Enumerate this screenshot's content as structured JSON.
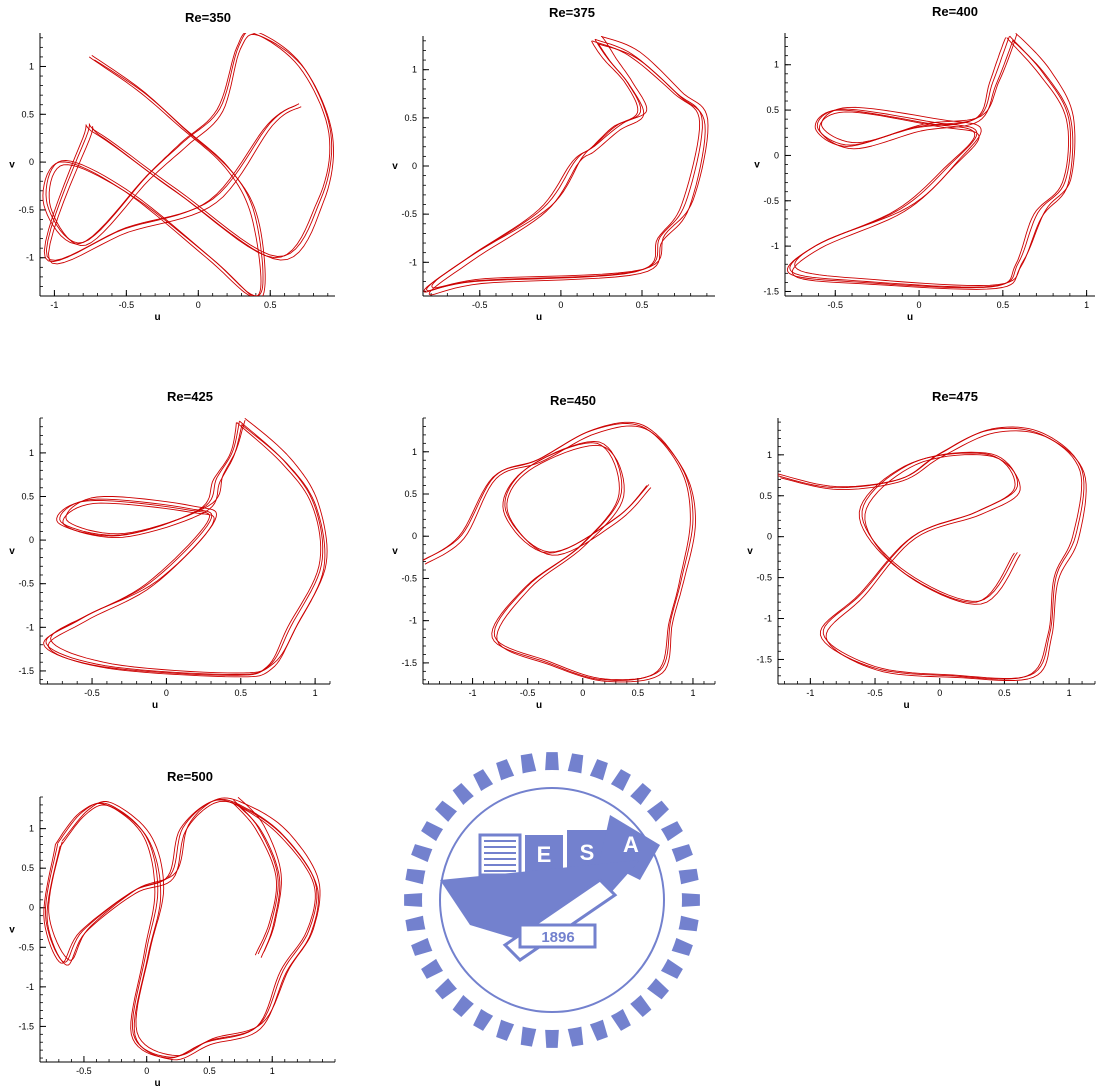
{
  "chart_data": [
    {
      "type": "scatter",
      "title": "Re=350",
      "xlabel": "u",
      "ylabel": "v",
      "xlim": [
        -1.1,
        0.95
      ],
      "ylim": [
        -1.4,
        1.35
      ],
      "xticks": [
        -1,
        -0.5,
        0,
        0.5
      ],
      "yticks": [
        -1,
        -0.5,
        0,
        0.5,
        1
      ],
      "color": "#cc0000",
      "curve_style": "chaotic-attractor",
      "series": [
        {
          "values": [
            [
              -0.74,
              1.1
            ],
            [
              -0.4,
              0.75
            ],
            [
              -0.1,
              0.35
            ],
            [
              0.2,
              -0.05
            ],
            [
              0.38,
              -0.5
            ],
            [
              0.45,
              -1.2
            ],
            [
              0.38,
              -1.4
            ],
            [
              0.08,
              -1.0
            ],
            [
              -0.5,
              -0.3
            ],
            [
              -0.95,
              0.0
            ],
            [
              -1.05,
              -0.45
            ],
            [
              -0.8,
              -0.85
            ],
            [
              -0.35,
              -0.15
            ],
            [
              -0.1,
              0.2
            ],
            [
              0.15,
              0.55
            ],
            [
              0.28,
              1.2
            ],
            [
              0.4,
              1.35
            ],
            [
              0.72,
              1.0
            ],
            [
              0.92,
              0.3
            ],
            [
              0.85,
              -0.4
            ],
            [
              0.55,
              -1.0
            ],
            [
              -0.15,
              -0.3
            ],
            [
              -0.7,
              0.3
            ],
            [
              -0.78,
              0.25
            ],
            [
              -1.05,
              -1.0
            ],
            [
              -0.5,
              -0.7
            ],
            [
              0.1,
              -0.4
            ],
            [
              0.5,
              0.4
            ],
            [
              0.7,
              0.6
            ]
          ]
        }
      ]
    },
    {
      "type": "scatter",
      "title": "Re=375",
      "xlabel": "u",
      "ylabel": "v",
      "xlim": [
        -0.85,
        0.95
      ],
      "ylim": [
        -1.35,
        1.35
      ],
      "xticks": [
        -0.5,
        0,
        0.5
      ],
      "yticks": [
        -1,
        -0.5,
        0,
        0.5,
        1
      ],
      "color": "#cc0000",
      "curve_style": "periodic-loop",
      "series": [
        {
          "values": [
            [
              0.22,
              1.3
            ],
            [
              0.45,
              1.15
            ],
            [
              0.72,
              0.75
            ],
            [
              0.88,
              0.45
            ],
            [
              0.78,
              -0.4
            ],
            [
              0.62,
              -0.75
            ],
            [
              0.48,
              -1.1
            ],
            [
              -0.5,
              -1.2
            ],
            [
              -0.82,
              -1.3
            ],
            [
              -0.55,
              -0.95
            ],
            [
              -0.1,
              -0.45
            ],
            [
              0.1,
              0.05
            ],
            [
              0.2,
              0.18
            ],
            [
              0.35,
              0.4
            ],
            [
              0.5,
              0.55
            ],
            [
              0.42,
              0.85
            ],
            [
              0.3,
              1.1
            ],
            [
              0.22,
              1.3
            ]
          ]
        }
      ]
    },
    {
      "type": "scatter",
      "title": "Re=400",
      "xlabel": "u",
      "ylabel": "v",
      "xlim": [
        -0.8,
        1.05
      ],
      "ylim": [
        -1.55,
        1.35
      ],
      "xticks": [
        -0.5,
        0,
        0.5,
        1
      ],
      "yticks": [
        -1.5,
        -1,
        -0.5,
        0,
        0.5,
        1
      ],
      "color": "#cc0000",
      "curve_style": "periodic-loop",
      "series": [
        {
          "values": [
            [
              0.55,
              1.3
            ],
            [
              0.75,
              0.9
            ],
            [
              0.9,
              0.4
            ],
            [
              0.88,
              -0.3
            ],
            [
              0.72,
              -0.65
            ],
            [
              0.6,
              -1.2
            ],
            [
              0.45,
              -1.45
            ],
            [
              -0.3,
              -1.4
            ],
            [
              -0.75,
              -1.3
            ],
            [
              -0.6,
              -1.0
            ],
            [
              -0.1,
              -0.6
            ],
            [
              0.2,
              -0.1
            ],
            [
              0.35,
              0.25
            ],
            [
              0.1,
              0.35
            ],
            [
              -0.45,
              0.5
            ],
            [
              -0.6,
              0.3
            ],
            [
              -0.4,
              0.1
            ],
            [
              0.0,
              0.3
            ],
            [
              0.35,
              0.4
            ],
            [
              0.45,
              0.8
            ],
            [
              0.55,
              1.3
            ]
          ]
        }
      ]
    },
    {
      "type": "scatter",
      "title": "Re=425",
      "xlabel": "u",
      "ylabel": "v",
      "xlim": [
        -0.85,
        1.1
      ],
      "ylim": [
        -1.65,
        1.4
      ],
      "xticks": [
        -0.5,
        0,
        0.5,
        1
      ],
      "yticks": [
        -1.5,
        -1,
        -0.5,
        0,
        0.5,
        1
      ],
      "color": "#cc0000",
      "curve_style": "periodic-loop",
      "series": [
        {
          "values": [
            [
              0.5,
              1.35
            ],
            [
              0.8,
              0.9
            ],
            [
              1.0,
              0.4
            ],
            [
              1.05,
              -0.3
            ],
            [
              0.85,
              -1.0
            ],
            [
              0.7,
              -1.45
            ],
            [
              0.45,
              -1.55
            ],
            [
              -0.4,
              -1.45
            ],
            [
              -0.8,
              -1.2
            ],
            [
              -0.55,
              -0.9
            ],
            [
              -0.1,
              -0.5
            ],
            [
              0.3,
              0.2
            ],
            [
              0.15,
              0.35
            ],
            [
              -0.5,
              0.45
            ],
            [
              -0.7,
              0.2
            ],
            [
              -0.3,
              0.05
            ],
            [
              0.25,
              0.35
            ],
            [
              0.35,
              0.7
            ],
            [
              0.45,
              1.0
            ],
            [
              0.5,
              1.35
            ]
          ]
        }
      ]
    },
    {
      "type": "scatter",
      "title": "Re=450",
      "xlabel": "u",
      "ylabel": "v",
      "xlim": [
        -1.45,
        1.2
      ],
      "ylim": [
        -1.75,
        1.4
      ],
      "xticks": [
        -1,
        -0.5,
        0,
        0.5,
        1
      ],
      "yticks": [
        -1.5,
        -1,
        -0.5,
        0,
        0.5,
        1
      ],
      "color": "#cc0000",
      "curve_style": "chaotic-attractor",
      "series": [
        {
          "values": [
            [
              -1.45,
              -0.3
            ],
            [
              -1.1,
              0.0
            ],
            [
              -0.8,
              0.7
            ],
            [
              -0.4,
              0.9
            ],
            [
              0.1,
              1.25
            ],
            [
              0.55,
              1.3
            ],
            [
              0.9,
              0.8
            ],
            [
              1.0,
              0.2
            ],
            [
              0.9,
              -0.5
            ],
            [
              0.8,
              -1.0
            ],
            [
              0.7,
              -1.6
            ],
            [
              0.2,
              -1.7
            ],
            [
              -0.3,
              -1.5
            ],
            [
              -0.8,
              -1.2
            ],
            [
              -0.5,
              -0.6
            ],
            [
              0.0,
              -0.1
            ],
            [
              0.35,
              0.5
            ],
            [
              0.15,
              1.1
            ],
            [
              -0.5,
              0.8
            ],
            [
              -0.7,
              0.3
            ],
            [
              -0.3,
              -0.2
            ],
            [
              0.3,
              0.2
            ],
            [
              0.6,
              0.6
            ]
          ]
        }
      ]
    },
    {
      "type": "scatter",
      "title": "Re=475",
      "xlabel": "u",
      "ylabel": "v",
      "xlim": [
        -1.25,
        1.2
      ],
      "ylim": [
        -1.8,
        1.45
      ],
      "xticks": [
        -1,
        -0.5,
        0,
        0.5,
        1
      ],
      "yticks": [
        -1.5,
        -1,
        -0.5,
        0,
        0.5,
        1
      ],
      "color": "#cc0000",
      "curve_style": "chaotic-attractor",
      "series": [
        {
          "values": [
            [
              -1.25,
              0.75
            ],
            [
              -0.8,
              0.6
            ],
            [
              -0.3,
              0.7
            ],
            [
              0.0,
              1.0
            ],
            [
              0.4,
              1.3
            ],
            [
              0.8,
              1.25
            ],
            [
              1.1,
              0.8
            ],
            [
              1.05,
              0.0
            ],
            [
              0.9,
              -0.5
            ],
            [
              0.85,
              -1.2
            ],
            [
              0.7,
              -1.7
            ],
            [
              0.1,
              -1.7
            ],
            [
              -0.5,
              -1.6
            ],
            [
              -0.9,
              -1.2
            ],
            [
              -0.6,
              -0.7
            ],
            [
              -0.2,
              0.0
            ],
            [
              0.3,
              0.3
            ],
            [
              0.6,
              0.6
            ],
            [
              0.4,
              1.0
            ],
            [
              -0.2,
              0.9
            ],
            [
              -0.6,
              0.3
            ],
            [
              -0.3,
              -0.4
            ],
            [
              0.3,
              -0.8
            ],
            [
              0.6,
              -0.2
            ]
          ]
        }
      ]
    },
    {
      "type": "scatter",
      "title": "Re=500",
      "xlabel": "u",
      "ylabel": "v",
      "xlim": [
        -0.85,
        1.5
      ],
      "ylim": [
        -1.95,
        1.4
      ],
      "xticks": [
        -0.5,
        0,
        0.5,
        1
      ],
      "yticks": [
        -1.5,
        -1,
        -0.5,
        0,
        0.5,
        1
      ],
      "color": "#cc0000",
      "curve_style": "periodic-loop",
      "series": [
        {
          "values": [
            [
              -0.7,
              0.8
            ],
            [
              -0.5,
              1.2
            ],
            [
              -0.3,
              1.3
            ],
            [
              0.0,
              0.9
            ],
            [
              0.1,
              0.2
            ],
            [
              0.0,
              -0.6
            ],
            [
              -0.1,
              -1.6
            ],
            [
              0.2,
              -1.9
            ],
            [
              0.5,
              -1.7
            ],
            [
              0.9,
              -1.5
            ],
            [
              1.1,
              -0.8
            ],
            [
              1.3,
              -0.3
            ],
            [
              1.35,
              0.3
            ],
            [
              1.1,
              0.9
            ],
            [
              0.8,
              1.25
            ],
            [
              0.55,
              1.35
            ],
            [
              0.3,
              1.0
            ],
            [
              0.2,
              0.4
            ],
            [
              -0.1,
              0.2
            ],
            [
              -0.5,
              -0.3
            ],
            [
              -0.65,
              -0.7
            ],
            [
              -0.8,
              -0.1
            ],
            [
              -0.7,
              0.8
            ]
          ]
        },
        {
          "values": [
            [
              0.7,
              1.35
            ],
            [
              0.9,
              1.0
            ],
            [
              1.05,
              0.4
            ],
            [
              1.0,
              -0.2
            ],
            [
              0.9,
              -0.6
            ]
          ]
        }
      ]
    }
  ],
  "watermark": {
    "year_text": "1896",
    "letters": [
      "E",
      "S",
      "A"
    ],
    "color": "#5b6cc6"
  }
}
